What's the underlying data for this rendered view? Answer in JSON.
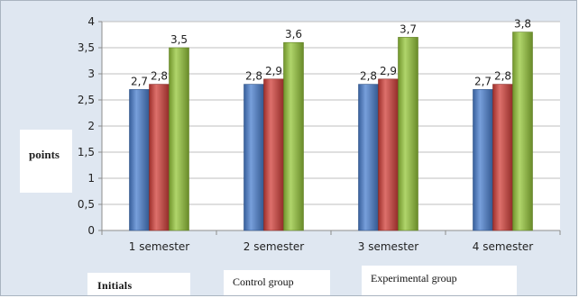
{
  "chart_data": {
    "type": "bar",
    "title": "",
    "xlabel": "",
    "ylabel": "points",
    "ylim": [
      0,
      4
    ],
    "yticks": [
      0,
      0.5,
      1,
      1.5,
      2,
      2.5,
      3,
      3.5,
      4
    ],
    "ytick_labels": [
      "0",
      "0,5",
      "1",
      "1,5",
      "2",
      "2,5",
      "3",
      "3,5",
      "4"
    ],
    "grid": "horizontal",
    "legend": "bottom",
    "categories": [
      "1 semester",
      "2 semester",
      "3 semester",
      "4 semester"
    ],
    "series": [
      {
        "name": "Initials",
        "color": "#4a7fcf",
        "values": [
          2.7,
          2.8,
          2.8,
          2.7
        ],
        "labels": [
          "2,7",
          "2,8",
          "2,8",
          "2,7"
        ]
      },
      {
        "name": "Control group",
        "color": "#d2403a",
        "values": [
          2.8,
          2.9,
          2.9,
          2.8
        ],
        "labels": [
          "2,8",
          "2,9",
          "2,9",
          "2,8"
        ]
      },
      {
        "name": "Experimental group",
        "color": "#96c73a",
        "values": [
          3.5,
          3.6,
          3.7,
          3.8
        ],
        "labels": [
          "3,5",
          "3,6",
          "3,7",
          "3,8"
        ]
      }
    ]
  }
}
